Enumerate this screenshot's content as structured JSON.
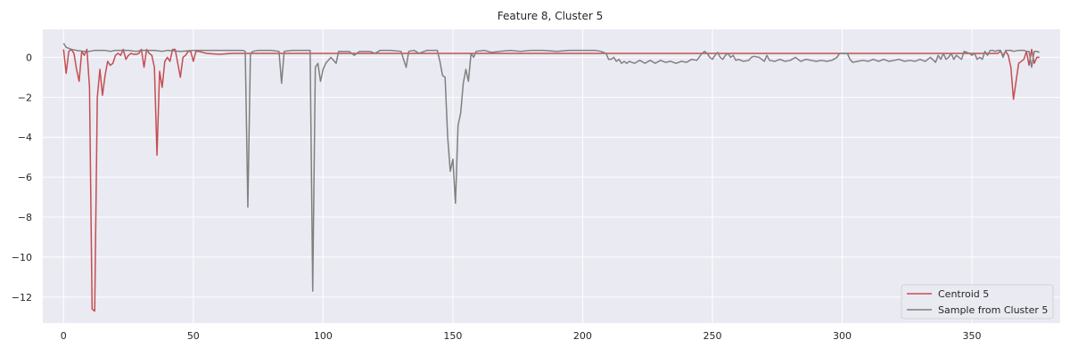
{
  "chart_data": {
    "type": "line",
    "title": "Feature 8, Cluster 5",
    "xlabel": "",
    "ylabel": "",
    "xlim": [
      -8,
      384
    ],
    "ylim": [
      -13.3,
      1.4
    ],
    "x_ticks": [
      0,
      50,
      100,
      150,
      200,
      250,
      300,
      350
    ],
    "y_ticks": [
      0,
      -2,
      -4,
      -6,
      -8,
      -10,
      -12
    ],
    "grid": true,
    "legend_position": "bottom-right",
    "background_color": "#eaeaf2",
    "grid_color": "#ffffff",
    "series": [
      {
        "name": "Centroid 5",
        "color": "#c44e52",
        "points": [
          [
            0,
            0.4
          ],
          [
            1,
            -0.8
          ],
          [
            2,
            0.3
          ],
          [
            3,
            0.4
          ],
          [
            4,
            0.2
          ],
          [
            5,
            -0.6
          ],
          [
            6,
            -1.2
          ],
          [
            7,
            0.3
          ],
          [
            8,
            0.1
          ],
          [
            9,
            0.4
          ],
          [
            10,
            -1.5
          ],
          [
            11,
            -12.6
          ],
          [
            12,
            -12.7
          ],
          [
            13,
            -2.0
          ],
          [
            14,
            -0.6
          ],
          [
            15,
            -1.9
          ],
          [
            16,
            -0.9
          ],
          [
            17,
            -0.2
          ],
          [
            18,
            -0.4
          ],
          [
            19,
            -0.3
          ],
          [
            20,
            0.1
          ],
          [
            21,
            0.2
          ],
          [
            22,
            0.1
          ],
          [
            23,
            0.4
          ],
          [
            24,
            -0.1
          ],
          [
            25,
            0.1
          ],
          [
            26,
            0.2
          ],
          [
            27,
            0.15
          ],
          [
            28,
            0.15
          ],
          [
            29,
            0.2
          ],
          [
            30,
            0.4
          ],
          [
            31,
            -0.5
          ],
          [
            32,
            0.4
          ],
          [
            33,
            0.2
          ],
          [
            34,
            0.1
          ],
          [
            35,
            -0.5
          ],
          [
            36,
            -4.9
          ],
          [
            37,
            -0.7
          ],
          [
            38,
            -1.5
          ],
          [
            39,
            -0.2
          ],
          [
            40,
            0.0
          ],
          [
            41,
            -0.2
          ],
          [
            42,
            0.4
          ],
          [
            43,
            0.4
          ],
          [
            44,
            -0.3
          ],
          [
            45,
            -1.0
          ],
          [
            46,
            0.0
          ],
          [
            47,
            0.1
          ],
          [
            48,
            0.3
          ],
          [
            49,
            0.3
          ],
          [
            50,
            -0.2
          ],
          [
            51,
            0.3
          ],
          [
            52,
            0.3
          ],
          [
            55,
            0.2
          ],
          [
            60,
            0.15
          ],
          [
            65,
            0.2
          ],
          [
            70,
            0.2
          ],
          [
            80,
            0.2
          ],
          [
            100,
            0.2
          ],
          [
            150,
            0.2
          ],
          [
            200,
            0.2
          ],
          [
            250,
            0.2
          ],
          [
            300,
            0.2
          ],
          [
            340,
            0.2
          ],
          [
            350,
            0.2
          ],
          [
            355,
            0.2
          ],
          [
            358,
            0.2
          ],
          [
            360,
            0.2
          ],
          [
            361,
            0.3
          ],
          [
            362,
            0.1
          ],
          [
            363,
            0.3
          ],
          [
            364,
            0.1
          ],
          [
            365,
            -0.5
          ],
          [
            366,
            -2.1
          ],
          [
            367,
            -1.2
          ],
          [
            368,
            -0.3
          ],
          [
            369,
            -0.2
          ],
          [
            370,
            -0.1
          ],
          [
            371,
            0.3
          ],
          [
            372,
            -0.4
          ],
          [
            373,
            0.4
          ],
          [
            374,
            -0.3
          ],
          [
            375,
            0.0
          ],
          [
            376,
            0.0
          ]
        ]
      },
      {
        "name": "Sample from Cluster 5",
        "color": "#808080",
        "points": [
          [
            0,
            0.7
          ],
          [
            1,
            0.5
          ],
          [
            2,
            0.45
          ],
          [
            3,
            0.4
          ],
          [
            5,
            0.35
          ],
          [
            8,
            0.3
          ],
          [
            10,
            0.3
          ],
          [
            12,
            0.35
          ],
          [
            14,
            0.35
          ],
          [
            16,
            0.35
          ],
          [
            18,
            0.3
          ],
          [
            20,
            0.35
          ],
          [
            22,
            0.35
          ],
          [
            25,
            0.35
          ],
          [
            28,
            0.3
          ],
          [
            30,
            0.35
          ],
          [
            35,
            0.35
          ],
          [
            38,
            0.3
          ],
          [
            40,
            0.35
          ],
          [
            45,
            0.3
          ],
          [
            50,
            0.35
          ],
          [
            55,
            0.35
          ],
          [
            60,
            0.35
          ],
          [
            65,
            0.35
          ],
          [
            69,
            0.35
          ],
          [
            70,
            0.3
          ],
          [
            71,
            -7.5
          ],
          [
            72,
            0.2
          ],
          [
            73,
            0.3
          ],
          [
            75,
            0.35
          ],
          [
            80,
            0.35
          ],
          [
            83,
            0.3
          ],
          [
            84,
            -1.3
          ],
          [
            85,
            0.3
          ],
          [
            88,
            0.35
          ],
          [
            92,
            0.35
          ],
          [
            95,
            0.35
          ],
          [
            96,
            -11.7
          ],
          [
            97,
            -0.5
          ],
          [
            98,
            -0.3
          ],
          [
            99,
            -1.2
          ],
          [
            100,
            -0.6
          ],
          [
            101,
            -0.3
          ],
          [
            103,
            0.0
          ],
          [
            105,
            -0.3
          ],
          [
            106,
            0.3
          ],
          [
            108,
            0.3
          ],
          [
            110,
            0.3
          ],
          [
            112,
            0.1
          ],
          [
            114,
            0.3
          ],
          [
            118,
            0.3
          ],
          [
            120,
            0.2
          ],
          [
            122,
            0.35
          ],
          [
            126,
            0.35
          ],
          [
            130,
            0.3
          ],
          [
            132,
            -0.5
          ],
          [
            133,
            0.3
          ],
          [
            135,
            0.35
          ],
          [
            137,
            0.2
          ],
          [
            140,
            0.35
          ],
          [
            144,
            0.35
          ],
          [
            145,
            -0.2
          ],
          [
            146,
            -0.9
          ],
          [
            147,
            -1.0
          ],
          [
            148,
            -4.0
          ],
          [
            149,
            -5.7
          ],
          [
            150,
            -5.1
          ],
          [
            151,
            -7.3
          ],
          [
            152,
            -3.4
          ],
          [
            153,
            -2.8
          ],
          [
            154,
            -1.3
          ],
          [
            155,
            -0.6
          ],
          [
            156,
            -1.2
          ],
          [
            157,
            0.2
          ],
          [
            158,
            0.0
          ],
          [
            159,
            0.3
          ],
          [
            162,
            0.35
          ],
          [
            165,
            0.25
          ],
          [
            168,
            0.3
          ],
          [
            172,
            0.35
          ],
          [
            176,
            0.3
          ],
          [
            180,
            0.35
          ],
          [
            185,
            0.35
          ],
          [
            190,
            0.3
          ],
          [
            195,
            0.35
          ],
          [
            200,
            0.35
          ],
          [
            205,
            0.35
          ],
          [
            207,
            0.3
          ],
          [
            209,
            0.2
          ],
          [
            210,
            -0.1
          ],
          [
            211,
            -0.1
          ],
          [
            212,
            -0.0
          ],
          [
            213,
            -0.2
          ],
          [
            214,
            -0.1
          ],
          [
            215,
            -0.3
          ],
          [
            216,
            -0.2
          ],
          [
            217,
            -0.3
          ],
          [
            218,
            -0.2
          ],
          [
            220,
            -0.3
          ],
          [
            222,
            -0.15
          ],
          [
            224,
            -0.3
          ],
          [
            226,
            -0.15
          ],
          [
            228,
            -0.3
          ],
          [
            230,
            -0.15
          ],
          [
            232,
            -0.25
          ],
          [
            234,
            -0.2
          ],
          [
            236,
            -0.3
          ],
          [
            238,
            -0.2
          ],
          [
            240,
            -0.25
          ],
          [
            242,
            -0.1
          ],
          [
            244,
            -0.15
          ],
          [
            246,
            0.2
          ],
          [
            247,
            0.3
          ],
          [
            248,
            0.2
          ],
          [
            249,
            0.0
          ],
          [
            250,
            -0.1
          ],
          [
            251,
            0.1
          ],
          [
            252,
            0.25
          ],
          [
            253,
            0.0
          ],
          [
            254,
            -0.1
          ],
          [
            255,
            0.1
          ],
          [
            256,
            0.2
          ],
          [
            257,
            0.0
          ],
          [
            258,
            0.1
          ],
          [
            259,
            -0.15
          ],
          [
            260,
            -0.1
          ],
          [
            262,
            -0.2
          ],
          [
            264,
            -0.15
          ],
          [
            265,
            0.0
          ],
          [
            266,
            0.05
          ],
          [
            268,
            0.0
          ],
          [
            270,
            -0.2
          ],
          [
            271,
            0.1
          ],
          [
            272,
            -0.15
          ],
          [
            274,
            -0.2
          ],
          [
            276,
            -0.1
          ],
          [
            278,
            -0.2
          ],
          [
            280,
            -0.15
          ],
          [
            282,
            0.0
          ],
          [
            284,
            -0.2
          ],
          [
            286,
            -0.1
          ],
          [
            288,
            -0.15
          ],
          [
            290,
            -0.2
          ],
          [
            292,
            -0.15
          ],
          [
            294,
            -0.2
          ],
          [
            296,
            -0.15
          ],
          [
            298,
            0.0
          ],
          [
            299,
            0.2
          ],
          [
            302,
            0.2
          ],
          [
            303,
            -0.1
          ],
          [
            304,
            -0.25
          ],
          [
            306,
            -0.2
          ],
          [
            308,
            -0.15
          ],
          [
            310,
            -0.2
          ],
          [
            312,
            -0.1
          ],
          [
            314,
            -0.2
          ],
          [
            316,
            -0.1
          ],
          [
            318,
            -0.2
          ],
          [
            320,
            -0.15
          ],
          [
            322,
            -0.1
          ],
          [
            324,
            -0.2
          ],
          [
            326,
            -0.15
          ],
          [
            328,
            -0.2
          ],
          [
            330,
            -0.1
          ],
          [
            332,
            -0.2
          ],
          [
            334,
            0.0
          ],
          [
            336,
            -0.25
          ],
          [
            337,
            0.1
          ],
          [
            338,
            -0.1
          ],
          [
            339,
            0.2
          ],
          [
            340,
            -0.1
          ],
          [
            341,
            0.0
          ],
          [
            342,
            0.2
          ],
          [
            343,
            -0.1
          ],
          [
            344,
            0.1
          ],
          [
            345,
            0.0
          ],
          [
            346,
            -0.1
          ],
          [
            347,
            0.3
          ],
          [
            348,
            0.25
          ],
          [
            349,
            0.2
          ],
          [
            350,
            0.1
          ],
          [
            351,
            0.2
          ],
          [
            352,
            -0.1
          ],
          [
            353,
            0.0
          ],
          [
            354,
            -0.1
          ],
          [
            355,
            0.3
          ],
          [
            356,
            0.1
          ],
          [
            357,
            0.35
          ],
          [
            358,
            0.35
          ],
          [
            359,
            0.3
          ],
          [
            360,
            0.35
          ],
          [
            361,
            0.35
          ],
          [
            362,
            0.0
          ],
          [
            363,
            0.35
          ],
          [
            364,
            0.35
          ],
          [
            365,
            0.35
          ],
          [
            366,
            0.3
          ],
          [
            368,
            0.35
          ],
          [
            370,
            0.35
          ],
          [
            371,
            0.3
          ],
          [
            372,
            0.3
          ],
          [
            373,
            -0.5
          ],
          [
            374,
            0.3
          ],
          [
            375,
            0.3
          ],
          [
            376,
            0.25
          ]
        ]
      }
    ]
  }
}
